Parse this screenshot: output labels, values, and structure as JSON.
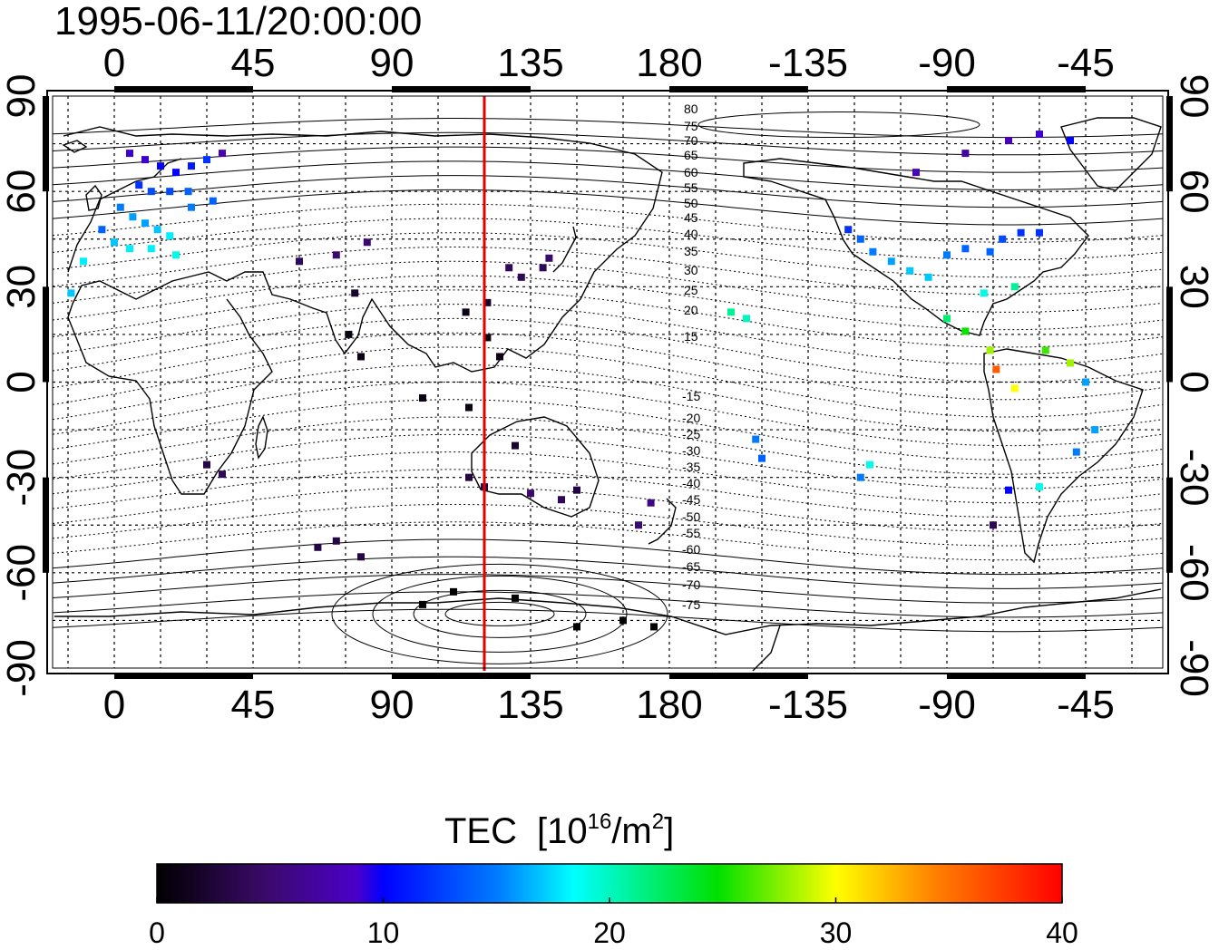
{
  "header": {
    "datetime": "1995-06-11/20:00:00"
  },
  "map": {
    "lon_ticks": [
      "0",
      "45",
      "90",
      "135",
      "180",
      "-135",
      "-90",
      "-45"
    ],
    "lat_ticks": [
      "90",
      "60",
      "30",
      "0",
      "-30",
      "-60",
      "-90"
    ],
    "lon_range": [
      -20,
      340
    ],
    "lat_range": [
      -90,
      90
    ],
    "grid": true,
    "terminator_line": {
      "color": "#e00000",
      "lon": 120
    }
  },
  "contours": {
    "labels_north": [
      "80",
      "75",
      "70",
      "65",
      "60",
      "55",
      "50",
      "45",
      "40",
      "35",
      "30",
      "25",
      "20",
      "15"
    ],
    "labels_south": [
      "-15",
      "-20",
      "-25",
      "-30",
      "-35",
      "-40",
      "-45",
      "-50",
      "-55",
      "-60",
      "-65",
      "-70",
      "-75"
    ]
  },
  "colorbar": {
    "title": "TEC",
    "unit_prefix": "[10",
    "unit_exp": "16",
    "unit_mid": "/m",
    "unit_exp2": "2",
    "unit_suffix": "]",
    "ticks": [
      "0",
      "10",
      "20",
      "30",
      "40"
    ],
    "min": 0,
    "max": 40
  },
  "chart_data": {
    "type": "scatter",
    "title": "1995-06-11/20:00:00",
    "xlabel": "",
    "ylabel": "",
    "xlim": [
      -20,
      340
    ],
    "ylim": [
      -90,
      90
    ],
    "note": "TEC observation points by station region (longitude east, latitude, TEC)",
    "points": [
      [
        5,
        72,
        9
      ],
      [
        10,
        70,
        9
      ],
      [
        15,
        68,
        10
      ],
      [
        20,
        66,
        10
      ],
      [
        25,
        68,
        11
      ],
      [
        30,
        70,
        12
      ],
      [
        8,
        62,
        12
      ],
      [
        12,
        60,
        13
      ],
      [
        18,
        60,
        13
      ],
      [
        24,
        60,
        14
      ],
      [
        2,
        55,
        15
      ],
      [
        6,
        52,
        16
      ],
      [
        10,
        50,
        16
      ],
      [
        14,
        48,
        17
      ],
      [
        18,
        46,
        18
      ],
      [
        -4,
        48,
        14
      ],
      [
        0,
        44,
        17
      ],
      [
        5,
        42,
        18
      ],
      [
        12,
        42,
        18
      ],
      [
        20,
        40,
        19
      ],
      [
        -10,
        38,
        18
      ],
      [
        -14,
        28,
        17
      ],
      [
        25,
        55,
        15
      ],
      [
        32,
        57,
        14
      ],
      [
        35,
        72,
        8
      ],
      [
        60,
        38,
        4
      ],
      [
        72,
        40,
        5
      ],
      [
        82,
        44,
        5
      ],
      [
        78,
        28,
        2
      ],
      [
        76,
        15,
        1
      ],
      [
        80,
        8,
        1
      ],
      [
        128,
        36,
        4
      ],
      [
        132,
        33,
        4
      ],
      [
        139,
        36,
        4
      ],
      [
        141,
        39,
        5
      ],
      [
        121,
        25,
        2
      ],
      [
        114,
        22,
        1
      ],
      [
        121,
        14,
        1
      ],
      [
        125,
        8,
        1
      ],
      [
        100,
        -5,
        1
      ],
      [
        115,
        -8,
        1
      ],
      [
        130,
        -20,
        2
      ],
      [
        115,
        -30,
        3
      ],
      [
        120,
        -33,
        3
      ],
      [
        135,
        -35,
        5
      ],
      [
        145,
        -37,
        4
      ],
      [
        150,
        -34,
        3
      ],
      [
        174,
        -38,
        6
      ],
      [
        170,
        -45,
        5
      ],
      [
        30,
        -26,
        3
      ],
      [
        35,
        -29,
        4
      ],
      [
        72,
        -50,
        3
      ],
      [
        66,
        -52,
        3
      ],
      [
        80,
        -55,
        3
      ],
      [
        100,
        -70,
        0
      ],
      [
        110,
        -66,
        0
      ],
      [
        130,
        -68,
        0
      ],
      [
        150,
        -77,
        0
      ],
      [
        165,
        -75,
        0
      ],
      [
        175,
        -77,
        0
      ],
      [
        200,
        22,
        21
      ],
      [
        205,
        20,
        20
      ],
      [
        208,
        -18,
        15
      ],
      [
        210,
        -24,
        14
      ],
      [
        242,
        -30,
        15
      ],
      [
        245,
        -26,
        19
      ],
      [
        238,
        48,
        12
      ],
      [
        242,
        45,
        14
      ],
      [
        246,
        41,
        15
      ],
      [
        252,
        38,
        16
      ],
      [
        258,
        35,
        17
      ],
      [
        264,
        33,
        17
      ],
      [
        270,
        40,
        15
      ],
      [
        276,
        42,
        14
      ],
      [
        284,
        41,
        14
      ],
      [
        288,
        45,
        13
      ],
      [
        294,
        47,
        12
      ],
      [
        300,
        47,
        12
      ],
      [
        282,
        28,
        19
      ],
      [
        292,
        30,
        21
      ],
      [
        270,
        20,
        22
      ],
      [
        276,
        16,
        25
      ],
      [
        284,
        10,
        28
      ],
      [
        286,
        4,
        36
      ],
      [
        292,
        -2,
        30
      ],
      [
        302,
        10,
        26
      ],
      [
        310,
        6,
        28
      ],
      [
        315,
        0,
        16
      ],
      [
        318,
        -15,
        16
      ],
      [
        312,
        -22,
        15
      ],
      [
        300,
        -33,
        19
      ],
      [
        290,
        -34,
        10
      ],
      [
        285,
        -45,
        4
      ],
      [
        260,
        66,
        8
      ],
      [
        276,
        72,
        7
      ],
      [
        290,
        76,
        8
      ],
      [
        300,
        78,
        9
      ],
      [
        310,
        76,
        10
      ]
    ]
  }
}
